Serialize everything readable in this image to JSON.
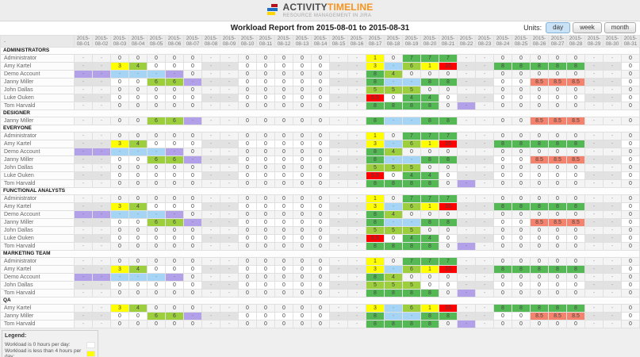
{
  "header": {
    "logo_part1": "ACTIVITY",
    "logo_part2": "TIMELINE",
    "logo_subtitle": "RESOURCE MANAGEMENT IN JIRA"
  },
  "toolbar": {
    "title": "Workload Report from 2015-08-01 to 2015-08-31",
    "units_label": "Units:",
    "units": [
      {
        "label": "day",
        "active": true
      },
      {
        "label": "week",
        "active": false
      },
      {
        "label": "month",
        "active": false
      }
    ]
  },
  "colors": {
    "y": "#ffff00",
    "l": "#9dce3e",
    "g": "#54b954",
    "r": "#fe0000",
    "s": "#f5826d",
    "p": "#b2a1e9",
    "b": "#a6d4f5",
    "accent_orange": "#f7941e"
  },
  "table": {
    "corner_label": "-",
    "dates": [
      "2015-08-01",
      "2015-08-02",
      "2015-08-03",
      "2015-08-04",
      "2015-08-05",
      "2015-08-06",
      "2015-08-07",
      "2015-08-08",
      "2015-08-09",
      "2015-08-10",
      "2015-08-11",
      "2015-08-12",
      "2015-08-13",
      "2015-08-14",
      "2015-08-15",
      "2015-08-16",
      "2015-08-17",
      "2015-08-18",
      "2015-08-19",
      "2015-08-20",
      "2015-08-21",
      "2015-08-22",
      "2015-08-23",
      "2015-08-24",
      "2015-08-25",
      "2015-08-26",
      "2015-08-27",
      "2015-08-28",
      "2015-08-29",
      "2015-08-30",
      "2015-08-31"
    ],
    "weekend_indices": [
      0,
      1,
      7,
      8,
      14,
      15,
      21,
      22,
      28,
      29
    ],
    "users": {
      "administrator": {
        "name": "Administrator",
        "cells": [
          "-",
          "-",
          "0",
          "0",
          "0",
          "0",
          "0",
          "-",
          "-",
          "0",
          "0",
          "0",
          "0",
          "0",
          "-",
          "-",
          "1:y",
          "0",
          "7:g",
          "7:g",
          "7:g",
          "-",
          "-",
          "0",
          "0",
          "0",
          "0",
          "0",
          "-",
          "-",
          "0"
        ]
      },
      "amy": {
        "name": "Amy Kartel",
        "cells": [
          "-",
          "-",
          "3:y",
          "4:l",
          "0",
          "0",
          "0",
          "-",
          "-",
          "0",
          "0",
          "0",
          "0",
          "0",
          "-",
          "-",
          "3:y",
          "-:b",
          "6:l",
          "1:y",
          "16:r",
          "-",
          "-",
          "8:g",
          "8:g",
          "8:g",
          "8:g",
          "8:g",
          "-",
          "-",
          "0"
        ]
      },
      "demo": {
        "name": "Demo Account",
        "cells": [
          "-:p",
          "-:p",
          "-:b",
          "-:b",
          "-:b",
          "-:p",
          "0",
          "-",
          "-",
          "0",
          "0",
          "0",
          "0",
          "0",
          "-",
          "-",
          "8:g",
          "4:l",
          "0",
          "0",
          "0",
          "-",
          "-",
          "0",
          "0",
          "0",
          "0",
          "0",
          "-",
          "-",
          "0"
        ]
      },
      "janny": {
        "name": "Janny Miller",
        "cells": [
          "-",
          "-",
          "0",
          "0",
          "6:l",
          "6:l",
          "-:p",
          "-",
          "-",
          "0",
          "0",
          "0",
          "0",
          "0",
          "-",
          "-",
          "8:g",
          "-:b",
          "-:b",
          "8:g",
          "8:g",
          "-",
          "-",
          "0",
          "0",
          "8.5:s",
          "8.5:s",
          "8.5:s",
          "-",
          "-",
          "0"
        ]
      },
      "john": {
        "name": "John Dallas",
        "cells": [
          "-",
          "-",
          "0",
          "0",
          "0",
          "0",
          "0",
          "-",
          "-",
          "0",
          "0",
          "0",
          "0",
          "0",
          "-",
          "-",
          "5:l",
          "5:l",
          "5:l",
          "0",
          "0",
          "-",
          "-",
          "0",
          "0",
          "0",
          "0",
          "0",
          "-",
          "-",
          "0"
        ]
      },
      "luke": {
        "name": "Luke Ouken",
        "cells": [
          "-",
          "-",
          "0",
          "0",
          "0",
          "0",
          "0",
          "-",
          "-",
          "0",
          "0",
          "0",
          "0",
          "0",
          "-",
          "-",
          "5.5:r",
          "0",
          "4:g",
          "4:g",
          "0",
          "-",
          "-",
          "0",
          "0",
          "0",
          "0",
          "0",
          "-",
          "-",
          "0"
        ]
      },
      "tom": {
        "name": "Tom Harvald",
        "cells": [
          "-",
          "-",
          "0",
          "0",
          "0",
          "0",
          "0",
          "-",
          "-",
          "0",
          "0",
          "0",
          "0",
          "0",
          "-",
          "-",
          "8:g",
          "8:g",
          "8:g",
          "8:g",
          "0",
          "-:p",
          "-",
          "0",
          "0",
          "0",
          "0",
          "0",
          "-",
          "-",
          "0"
        ]
      }
    },
    "groups": [
      {
        "name": "ADMINISTRATORS",
        "members": [
          "administrator",
          "amy",
          "demo",
          "janny",
          "john",
          "luke",
          "tom"
        ]
      },
      {
        "name": "DESIGNER",
        "members": [
          "janny"
        ]
      },
      {
        "name": "EVERYONE",
        "members": [
          "administrator",
          "amy",
          "demo",
          "janny",
          "john",
          "luke",
          "tom"
        ]
      },
      {
        "name": "FUNCTIONAL ANALYSTS",
        "members": [
          "administrator",
          "amy",
          "demo",
          "janny",
          "john",
          "luke",
          "tom"
        ]
      },
      {
        "name": "MARKETING TEAM",
        "members": [
          "administrator",
          "amy",
          "demo",
          "john",
          "tom"
        ]
      },
      {
        "name": "QA",
        "members": [
          "amy",
          "janny",
          "tom"
        ]
      }
    ]
  },
  "legend": {
    "title": "Legend:",
    "items": [
      {
        "label": "Workload is 0 hours per day:",
        "color": "#ffffff"
      },
      {
        "label": "Workload is less than 4 hours per day:",
        "color": "#ffff00"
      },
      {
        "label": "",
        "color": "#9dce3e"
      }
    ]
  }
}
